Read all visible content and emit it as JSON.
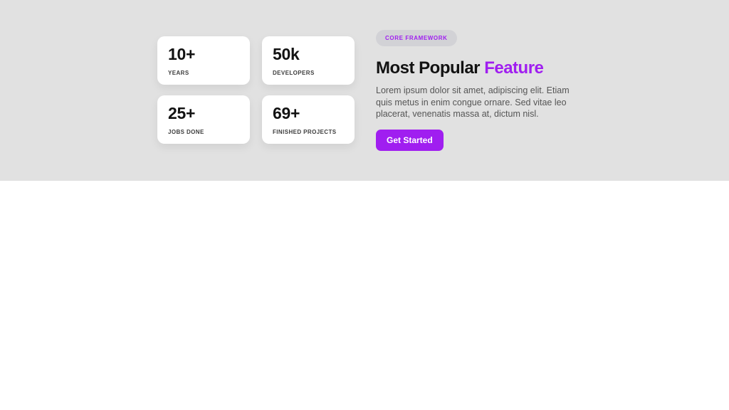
{
  "hero": {
    "stats": [
      {
        "value": "10+",
        "label": "YEARS"
      },
      {
        "value": "50k",
        "label": "DEVELOPERS"
      },
      {
        "value": "25+",
        "label": "JOBS DONE"
      },
      {
        "value": "69+",
        "label": "FINISHED PROJECTS"
      }
    ],
    "badge_label": "CORE FRAMEWORK",
    "heading_prefix": "Most Popular",
    "heading_highlight": "Feature",
    "description": "Lorem ipsum dolor sit amet, adipiscing elit. Etiam quis metus in enim congue ornare. Sed vitae leo placerat, venenatis massa at, dictum nisl.",
    "cta_label": "Get Started"
  },
  "colors": {
    "accent_purple": "#a01ef0",
    "section_background": "#e1e1e1",
    "card_background": "#ffffff",
    "badge_background": "#d2d2d6",
    "heading_text": "#121212",
    "body_text": "#555555"
  }
}
